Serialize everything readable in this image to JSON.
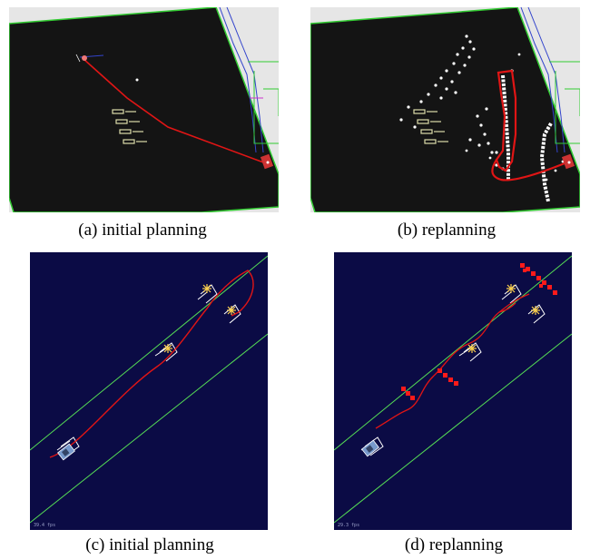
{
  "figure": {
    "panels": [
      {
        "id": "a",
        "caption": "(a) initial planning"
      },
      {
        "id": "b",
        "caption": "(b) replanning"
      },
      {
        "id": "c",
        "caption": "(c) initial planning",
        "fps": "39.4 fps"
      },
      {
        "id": "d",
        "caption": "(d) replanning",
        "fps": "29.3 fps"
      }
    ]
  },
  "colors": {
    "map_background": "#141414",
    "outside_background": "#e6e6e6",
    "boundary": "#33cc33",
    "path": "#e01515",
    "obstacle_points": "#ffffff",
    "sim_background": "#0b0b45",
    "lane_lines": "#55dd55",
    "obstacle_markers": "#ff1a1a",
    "goal_marker": "#ffd24d"
  }
}
